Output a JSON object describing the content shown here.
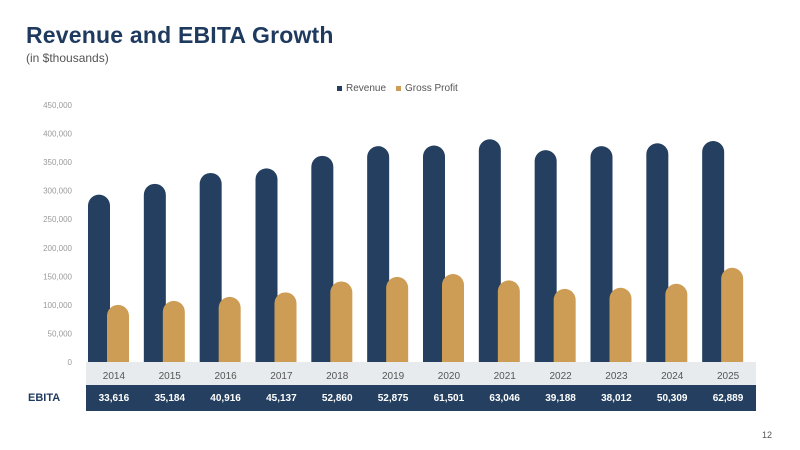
{
  "title": "Revenue and EBITA Growth",
  "subtitle": "(in $thousands)",
  "page_number": "12",
  "colors": {
    "revenue": "#243f60",
    "gross_profit": "#cd9d55",
    "title": "#1f3a5f",
    "category_band": "#e8ebee"
  },
  "chart_data": {
    "type": "bar",
    "categories": [
      "2014",
      "2015",
      "2016",
      "2017",
      "2018",
      "2019",
      "2020",
      "2021",
      "2022",
      "2023",
      "2024",
      "2025"
    ],
    "series": [
      {
        "name": "Revenue",
        "values": [
          293000,
          312000,
          331000,
          339000,
          361000,
          378000,
          379000,
          390000,
          371000,
          378000,
          383000,
          387000
        ]
      },
      {
        "name": "Gross Profit",
        "values": [
          100000,
          107000,
          114000,
          122000,
          141000,
          149000,
          154000,
          143000,
          128000,
          130000,
          137000,
          165000
        ]
      }
    ],
    "ylim": [
      0,
      450000
    ],
    "yticks": [
      "0",
      "50,000",
      "100,000",
      "150,000",
      "200,000",
      "250,000",
      "300,000",
      "350,000",
      "400,000",
      "450,000"
    ],
    "legend": "top-center",
    "grid": false
  },
  "ebita": {
    "label": "EBITA",
    "values": [
      "33,616",
      "35,184",
      "40,916",
      "45,137",
      "52,860",
      "52,875",
      "61,501",
      "63,046",
      "39,188",
      "38,012",
      "50,309",
      "62,889"
    ]
  }
}
